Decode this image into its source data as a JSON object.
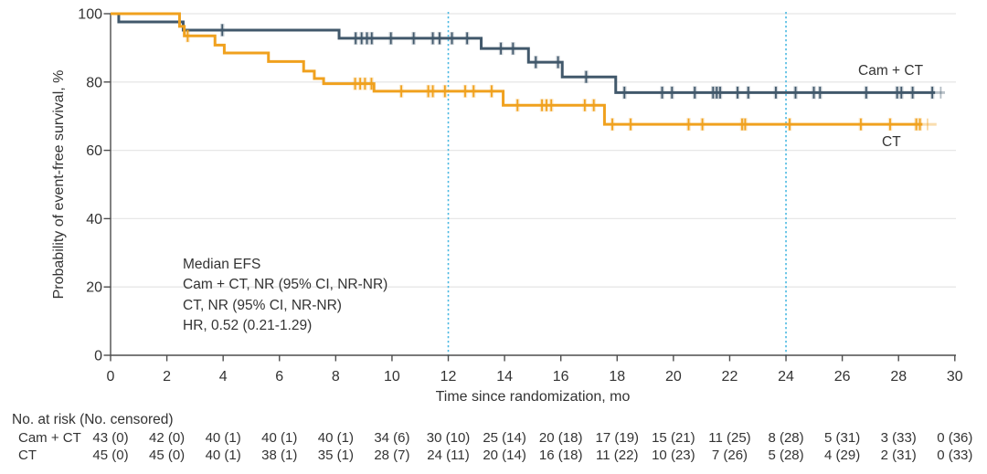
{
  "chart_data": {
    "type": "line",
    "subtype": "kaplan-meier-step",
    "title": "",
    "xlabel": "Time since randomization, mo",
    "ylabel": "Probability of event-free survival, %",
    "xlim": [
      0,
      30
    ],
    "ylim": [
      0,
      100
    ],
    "xticks": [
      0,
      2,
      4,
      6,
      8,
      10,
      12,
      14,
      16,
      18,
      20,
      22,
      24,
      26,
      28,
      30
    ],
    "yticks": [
      0,
      20,
      40,
      60,
      80,
      100
    ],
    "grid": "horizontal-light",
    "reference_lines_x": [
      12,
      24
    ],
    "colors": {
      "cam_ct": "#41586b",
      "ct": "#f0a11e",
      "reference": "#4cb9e2",
      "grid": "#e7e7e7",
      "axis": "#4d4d4d",
      "text": "#333333"
    },
    "annotation": [
      "Median EFS",
      "Cam + CT, NR (95% CI, NR-NR)",
      "CT, NR (95% CI, NR-NR)",
      "HR, 0.52 (0.21-1.29)"
    ],
    "series": [
      {
        "name": "Cam + CT",
        "color": "#41586b",
        "steps": [
          [
            0,
            100
          ],
          [
            0.29,
            97.6
          ],
          [
            2.58,
            95.2
          ],
          [
            8.12,
            92.8
          ],
          [
            13.17,
            89.8
          ],
          [
            14.85,
            85.8
          ],
          [
            16.05,
            81.5
          ],
          [
            17.95,
            76.9
          ]
        ],
        "end": 29.3,
        "tail": {
          "line_end": 29.65,
          "tick": 29.5
        },
        "censors": [
          3.97,
          8.71,
          8.92,
          9.11,
          9.28,
          9.96,
          10.77,
          11.45,
          11.69,
          12.13,
          12.67,
          13.87,
          14.3,
          15.11,
          15.9,
          16.9,
          18.26,
          19.6,
          19.95,
          20.76,
          21.41,
          21.54,
          21.66,
          22.28,
          22.66,
          23.64,
          24.34,
          24.99,
          25.21,
          26.85,
          27.95,
          28.1,
          28.5,
          29.2
        ]
      },
      {
        "name": "CT",
        "color": "#f0a11e",
        "steps": [
          [
            0,
            100
          ],
          [
            2.45,
            96.3
          ],
          [
            2.62,
            93.5
          ],
          [
            3.71,
            90.8
          ],
          [
            4.04,
            88.5
          ],
          [
            5.61,
            86.0
          ],
          [
            6.86,
            83.2
          ],
          [
            7.24,
            81.0
          ],
          [
            7.57,
            79.5
          ],
          [
            9.36,
            77.3
          ],
          [
            13.95,
            73.2
          ],
          [
            17.55,
            67.6
          ]
        ],
        "end": 28.85,
        "tail": {
          "line_end": 29.35,
          "tick": 29.03
        },
        "censors": [
          2.74,
          8.69,
          8.87,
          9.04,
          9.27,
          10.33,
          11.29,
          11.45,
          11.88,
          12.6,
          12.9,
          13.54,
          14.46,
          15.33,
          15.49,
          15.66,
          16.85,
          17.17,
          17.83,
          18.48,
          20.54,
          21.03,
          22.44,
          22.55,
          24.13,
          26.66,
          27.7,
          28.63,
          28.76
        ]
      }
    ],
    "risk_table": {
      "header": "No. at risk (No. censored)",
      "times": [
        0,
        2,
        4,
        6,
        8,
        10,
        12,
        14,
        16,
        18,
        20,
        22,
        24,
        26,
        28,
        30
      ],
      "rows": [
        {
          "label": "Cam + CT",
          "values": [
            "43 (0)",
            "42 (0)",
            "40 (1)",
            "40 (1)",
            "40 (1)",
            "34 (6)",
            "30 (10)",
            "25 (14)",
            "20 (18)",
            "17 (19)",
            "15 (21)",
            "11 (25)",
            "8 (28)",
            "5 (31)",
            "3 (33)",
            "0 (36)"
          ]
        },
        {
          "label": "CT",
          "values": [
            "45 (0)",
            "45 (0)",
            "40 (1)",
            "38 (1)",
            "35 (1)",
            "28 (7)",
            "24 (11)",
            "20 (14)",
            "16 (18)",
            "11 (22)",
            "10 (23)",
            "7 (26)",
            "5 (28)",
            "4 (29)",
            "2 (31)",
            "0 (33)"
          ]
        }
      ]
    }
  }
}
